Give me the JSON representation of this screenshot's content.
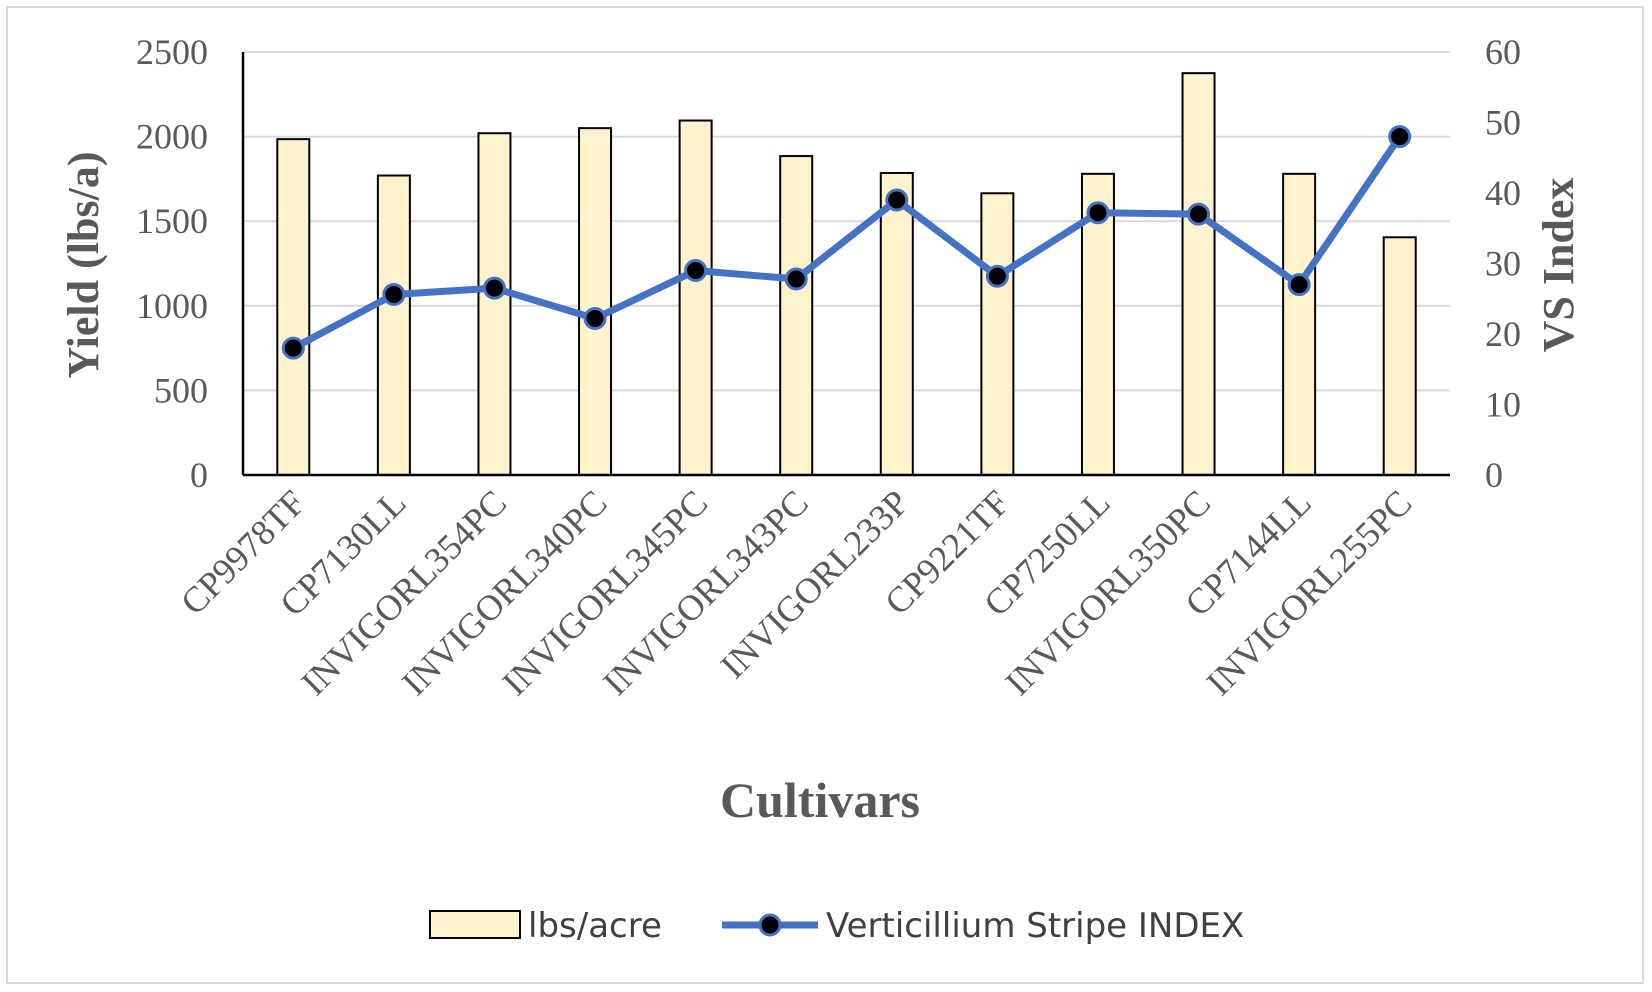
{
  "chart_data": {
    "type": "bar+line",
    "categories": [
      "CP9978TF",
      "CP7130LL",
      "INVIGORL354PC",
      "INVIGORL340PC",
      "INVIGORL345PC",
      "INVIGORL343PC",
      "INVIGORL233P",
      "CP9221TF",
      "CP7250LL",
      "INVIGORL350PC",
      "CP7144LL",
      "INVIGORL255PC"
    ],
    "series": [
      {
        "name": "lbs/acre",
        "type": "bar",
        "axis": "left",
        "values": [
          1985,
          1770,
          2020,
          2050,
          2095,
          1885,
          1785,
          1665,
          1780,
          2375,
          1780,
          1405
        ],
        "color": "#FFF2CC"
      },
      {
        "name": "Verticillium Stripe INDEX",
        "type": "line",
        "axis": "right",
        "values": [
          18,
          25.6,
          26.5,
          22.2,
          29,
          27.8,
          39,
          28.2,
          37.2,
          37,
          27,
          48
        ],
        "color": "#4472C4"
      }
    ],
    "xlabel": "Cultivars",
    "ylabel": "Yield (lbs/a)",
    "y2label": "VS Index",
    "ylim": [
      0,
      2500
    ],
    "y2lim": [
      0,
      60
    ],
    "yticks": [
      "0",
      "500",
      "1000",
      "1500",
      "2000",
      "2500"
    ],
    "y2ticks": [
      "0",
      "10",
      "20",
      "30",
      "40",
      "50",
      "60"
    ],
    "grid": true,
    "legend_position": "bottom"
  }
}
